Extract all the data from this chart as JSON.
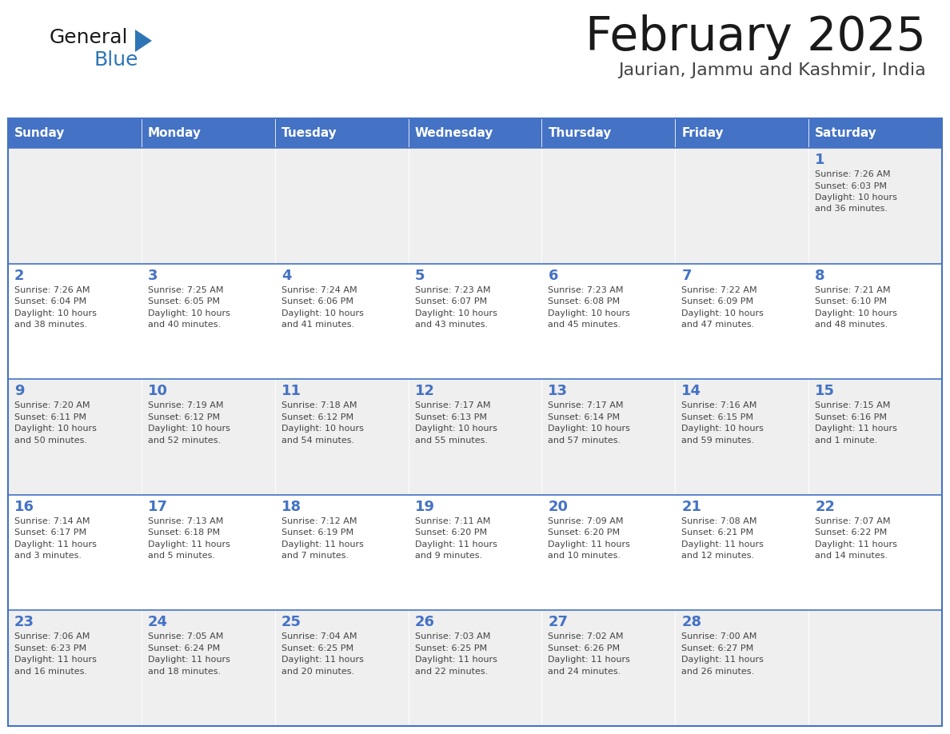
{
  "title": "February 2025",
  "subtitle": "Jaurian, Jammu and Kashmir, India",
  "header_color": "#4472C4",
  "header_text_color": "#FFFFFF",
  "days_of_week": [
    "Sunday",
    "Monday",
    "Tuesday",
    "Wednesday",
    "Thursday",
    "Friday",
    "Saturday"
  ],
  "background_color": "#FFFFFF",
  "cell_bg_even": "#EFEFEF",
  "cell_bg_odd": "#FFFFFF",
  "border_color": "#4472C4",
  "day_number_color": "#4472C4",
  "text_color": "#444444",
  "logo_black": "#1a1a1a",
  "logo_blue_triangle": "#2E75B6",
  "logo_blue_text": "#2E75B6",
  "calendar_data": [
    [
      {
        "day": "",
        "sunrise": "",
        "sunset": "",
        "daylight": ""
      },
      {
        "day": "",
        "sunrise": "",
        "sunset": "",
        "daylight": ""
      },
      {
        "day": "",
        "sunrise": "",
        "sunset": "",
        "daylight": ""
      },
      {
        "day": "",
        "sunrise": "",
        "sunset": "",
        "daylight": ""
      },
      {
        "day": "",
        "sunrise": "",
        "sunset": "",
        "daylight": ""
      },
      {
        "day": "",
        "sunrise": "",
        "sunset": "",
        "daylight": ""
      },
      {
        "day": "1",
        "sunrise": "7:26 AM",
        "sunset": "6:03 PM",
        "daylight": "10 hours and 36 minutes."
      }
    ],
    [
      {
        "day": "2",
        "sunrise": "7:26 AM",
        "sunset": "6:04 PM",
        "daylight": "10 hours and 38 minutes."
      },
      {
        "day": "3",
        "sunrise": "7:25 AM",
        "sunset": "6:05 PM",
        "daylight": "10 hours and 40 minutes."
      },
      {
        "day": "4",
        "sunrise": "7:24 AM",
        "sunset": "6:06 PM",
        "daylight": "10 hours and 41 minutes."
      },
      {
        "day": "5",
        "sunrise": "7:23 AM",
        "sunset": "6:07 PM",
        "daylight": "10 hours and 43 minutes."
      },
      {
        "day": "6",
        "sunrise": "7:23 AM",
        "sunset": "6:08 PM",
        "daylight": "10 hours and 45 minutes."
      },
      {
        "day": "7",
        "sunrise": "7:22 AM",
        "sunset": "6:09 PM",
        "daylight": "10 hours and 47 minutes."
      },
      {
        "day": "8",
        "sunrise": "7:21 AM",
        "sunset": "6:10 PM",
        "daylight": "10 hours and 48 minutes."
      }
    ],
    [
      {
        "day": "9",
        "sunrise": "7:20 AM",
        "sunset": "6:11 PM",
        "daylight": "10 hours and 50 minutes."
      },
      {
        "day": "10",
        "sunrise": "7:19 AM",
        "sunset": "6:12 PM",
        "daylight": "10 hours and 52 minutes."
      },
      {
        "day": "11",
        "sunrise": "7:18 AM",
        "sunset": "6:12 PM",
        "daylight": "10 hours and 54 minutes."
      },
      {
        "day": "12",
        "sunrise": "7:17 AM",
        "sunset": "6:13 PM",
        "daylight": "10 hours and 55 minutes."
      },
      {
        "day": "13",
        "sunrise": "7:17 AM",
        "sunset": "6:14 PM",
        "daylight": "10 hours and 57 minutes."
      },
      {
        "day": "14",
        "sunrise": "7:16 AM",
        "sunset": "6:15 PM",
        "daylight": "10 hours and 59 minutes."
      },
      {
        "day": "15",
        "sunrise": "7:15 AM",
        "sunset": "6:16 PM",
        "daylight": "11 hours and 1 minute."
      }
    ],
    [
      {
        "day": "16",
        "sunrise": "7:14 AM",
        "sunset": "6:17 PM",
        "daylight": "11 hours and 3 minutes."
      },
      {
        "day": "17",
        "sunrise": "7:13 AM",
        "sunset": "6:18 PM",
        "daylight": "11 hours and 5 minutes."
      },
      {
        "day": "18",
        "sunrise": "7:12 AM",
        "sunset": "6:19 PM",
        "daylight": "11 hours and 7 minutes."
      },
      {
        "day": "19",
        "sunrise": "7:11 AM",
        "sunset": "6:20 PM",
        "daylight": "11 hours and 9 minutes."
      },
      {
        "day": "20",
        "sunrise": "7:09 AM",
        "sunset": "6:20 PM",
        "daylight": "11 hours and 10 minutes."
      },
      {
        "day": "21",
        "sunrise": "7:08 AM",
        "sunset": "6:21 PM",
        "daylight": "11 hours and 12 minutes."
      },
      {
        "day": "22",
        "sunrise": "7:07 AM",
        "sunset": "6:22 PM",
        "daylight": "11 hours and 14 minutes."
      }
    ],
    [
      {
        "day": "23",
        "sunrise": "7:06 AM",
        "sunset": "6:23 PM",
        "daylight": "11 hours and 16 minutes."
      },
      {
        "day": "24",
        "sunrise": "7:05 AM",
        "sunset": "6:24 PM",
        "daylight": "11 hours and 18 minutes."
      },
      {
        "day": "25",
        "sunrise": "7:04 AM",
        "sunset": "6:25 PM",
        "daylight": "11 hours and 20 minutes."
      },
      {
        "day": "26",
        "sunrise": "7:03 AM",
        "sunset": "6:25 PM",
        "daylight": "11 hours and 22 minutes."
      },
      {
        "day": "27",
        "sunrise": "7:02 AM",
        "sunset": "6:26 PM",
        "daylight": "11 hours and 24 minutes."
      },
      {
        "day": "28",
        "sunrise": "7:00 AM",
        "sunset": "6:27 PM",
        "daylight": "11 hours and 26 minutes."
      },
      {
        "day": "",
        "sunrise": "",
        "sunset": "",
        "daylight": ""
      }
    ]
  ]
}
